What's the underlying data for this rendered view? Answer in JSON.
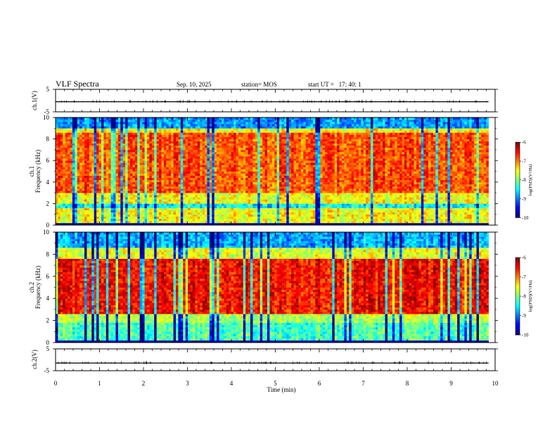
{
  "header": {
    "title": "VLF Spectra",
    "date": "Sep. 10, 2025",
    "station": "station= MOS",
    "start_ut": "start UT =   17: 40: 1"
  },
  "chart_data": [
    {
      "type": "line",
      "name": "ch1-waveform",
      "ylabel": "ch.1(V)",
      "ylim": [
        -5,
        5
      ],
      "yticks": [
        "5",
        "-5"
      ],
      "baseline": -0.5
    },
    {
      "type": "heatmap",
      "name": "ch1-spectrogram",
      "ylabel": "ch.1\nFrequency (kHz)",
      "ylim": [
        0,
        10
      ],
      "yticks": [
        "0",
        "2",
        "4",
        "6",
        "8",
        "10"
      ],
      "colorbar": {
        "label": "log(PSD)(V²/Hz)",
        "range": [
          -10,
          -6
        ],
        "ticks": [
          "-6",
          "-7",
          "-8",
          "-9",
          "-10"
        ]
      },
      "bands": [
        {
          "freq": [
            0,
            0.3
          ],
          "level": "dark blue"
        },
        {
          "freq": [
            0.3,
            1.5
          ],
          "level": "green-yellow"
        },
        {
          "freq": [
            1.5,
            2.0
          ],
          "level": "cyan"
        },
        {
          "freq": [
            2.0,
            3.0
          ],
          "level": "green-yellow"
        },
        {
          "freq": [
            3.0,
            8.5
          ],
          "level": "red-yellow"
        },
        {
          "freq": [
            8.5,
            9.0
          ],
          "level": "green-yellow"
        },
        {
          "freq": [
            9.0,
            10.0
          ],
          "level": "blue-cyan"
        }
      ]
    },
    {
      "type": "heatmap",
      "name": "ch2-spectrogram",
      "ylabel": "ch.2\nFrequency (kHz)",
      "ylim": [
        0,
        10
      ],
      "yticks": [
        "0",
        "2",
        "4",
        "6",
        "8",
        "10"
      ],
      "colorbar": {
        "label": "log(PSD)(V²/Hz)",
        "range": [
          -10,
          -6
        ],
        "ticks": [
          "-6",
          "-7",
          "-8",
          "-9",
          "-10"
        ]
      },
      "bands": [
        {
          "freq": [
            0,
            0.3
          ],
          "level": "dark blue"
        },
        {
          "freq": [
            0.3,
            1.8
          ],
          "level": "green-cyan"
        },
        {
          "freq": [
            1.8,
            2.5
          ],
          "level": "green"
        },
        {
          "freq": [
            2.5,
            7.5
          ],
          "level": "red"
        },
        {
          "freq": [
            7.5,
            8.5
          ],
          "level": "yellow-green"
        },
        {
          "freq": [
            8.5,
            10.0
          ],
          "level": "cyan-blue"
        }
      ]
    },
    {
      "type": "line",
      "name": "ch2-waveform",
      "ylabel": "ch.2(V)",
      "ylim": [
        -5,
        5
      ],
      "yticks": [
        "5",
        "-5"
      ],
      "baseline": -1.5
    }
  ],
  "xaxis": {
    "label": "Time (min)",
    "range": [
      0,
      10
    ],
    "ticks": [
      "0",
      "1",
      "2",
      "3",
      "4",
      "5",
      "6",
      "7",
      "8",
      "9",
      "10"
    ],
    "data_end": 9.85
  }
}
